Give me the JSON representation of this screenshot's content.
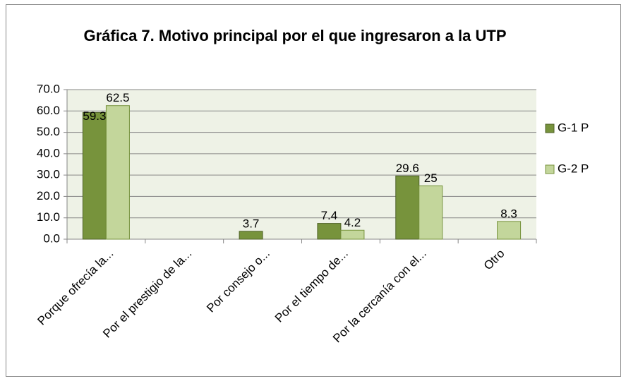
{
  "chart_data": {
    "type": "bar",
    "title": "Gráfica 7. Motivo principal por el que ingresaron a la UTP",
    "categories": [
      "Porque ofrecía la...",
      "Por el prestigio de la...",
      "Por consejo o...",
      "Por el tiempo de...",
      "Por la cercanía con el...",
      "Otro"
    ],
    "series": [
      {
        "name": "G-1 P",
        "color": "#77933c",
        "values": [
          59.3,
          null,
          3.7,
          7.4,
          29.6,
          null
        ]
      },
      {
        "name": "G-2 P",
        "color": "#c3d69b",
        "values": [
          62.5,
          null,
          null,
          4.2,
          25,
          8.3
        ]
      }
    ],
    "ylim": [
      0,
      70
    ],
    "yticks": [
      {
        "value": 0,
        "label": "0.0"
      },
      {
        "value": 10,
        "label": "10.0"
      },
      {
        "value": 20,
        "label": "20.0"
      },
      {
        "value": 30,
        "label": "30.0"
      },
      {
        "value": 40,
        "label": "40.0"
      },
      {
        "value": 50,
        "label": "50.0"
      },
      {
        "value": 60,
        "label": "60.0"
      },
      {
        "value": 70,
        "label": "70.0"
      }
    ],
    "grid": true,
    "legend": "right"
  }
}
